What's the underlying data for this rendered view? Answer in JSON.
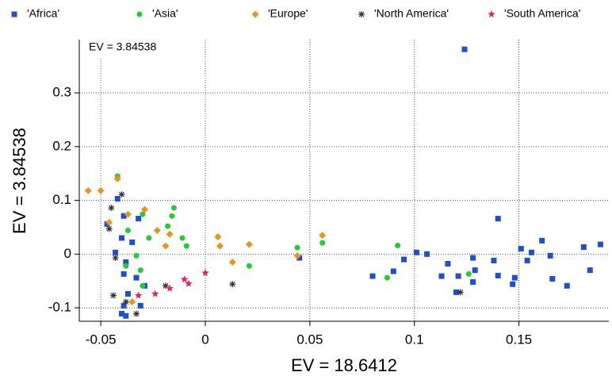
{
  "chart_data": {
    "type": "scatter",
    "annotation": "EV = 3.84538",
    "xlabel": "EV = 18.6412",
    "ylabel": "EV = 3.84538",
    "xlim": [
      -0.0603,
      0.193
    ],
    "ylim": [
      -0.125,
      0.399
    ],
    "xticks": [
      -0.05,
      0,
      0.05,
      0.1,
      0.15
    ],
    "yticks": [
      -0.1,
      0,
      0.1,
      0.2,
      0.3
    ],
    "grid": true,
    "legend": "top",
    "series": [
      {
        "name": "'Africa'",
        "color": "#1f4fd0",
        "marker": "square",
        "x": [
          0.124,
          0.189,
          0.181,
          0.184,
          0.173,
          0.166,
          0.165,
          0.161,
          0.156,
          0.154,
          0.151,
          0.148,
          0.147,
          0.14,
          0.138,
          0.14,
          0.129,
          0.128,
          0.128,
          0.121,
          0.116,
          0.113,
          0.106,
          0.101,
          0.095,
          0.09,
          0.08,
          0.045,
          0.12,
          -0.039,
          -0.047,
          -0.042,
          -0.04,
          -0.038,
          -0.039,
          -0.037,
          -0.039,
          -0.038,
          -0.031,
          -0.033,
          -0.029,
          -0.035,
          -0.043,
          -0.032,
          -0.04
        ],
        "y": [
          0.381,
          0.018,
          0.013,
          -0.03,
          -0.059,
          -0.046,
          -0.003,
          0.025,
          0.003,
          -0.012,
          0.01,
          -0.044,
          -0.056,
          -0.04,
          -0.012,
          0.066,
          -0.03,
          -0.007,
          -0.052,
          -0.041,
          -0.018,
          -0.041,
          0,
          0.003,
          -0.01,
          -0.032,
          -0.041,
          -0.007,
          -0.071,
          0.071,
          0.056,
          0.103,
          0.03,
          -0.015,
          -0.037,
          -0.074,
          -0.096,
          -0.115,
          -0.096,
          -0.044,
          -0.059,
          0.022,
          0.003,
          0.066,
          -0.111
        ]
      },
      {
        "name": "'Asia'",
        "color": "#22cc33",
        "marker": "circle",
        "x": [
          0.092,
          0.087,
          0.126,
          0.056,
          0.044,
          0.021,
          -0.015,
          -0.016,
          -0.011,
          -0.009,
          -0.018,
          -0.027,
          -0.03,
          -0.042,
          -0.037,
          -0.033,
          -0.038,
          -0.031,
          -0.03
        ],
        "y": [
          0.016,
          -0.044,
          -0.037,
          0.021,
          0.012,
          -0.022,
          0.086,
          0.071,
          0.03,
          0.015,
          0.052,
          0.03,
          0.074,
          0.145,
          0.044,
          -0.003,
          -0.022,
          -0.03,
          -0.059
        ]
      },
      {
        "name": "'Europe'",
        "color": "#e8951f",
        "marker": "diamond",
        "x": [
          -0.056,
          -0.05,
          -0.042,
          0.006,
          0.007,
          0.021,
          0.013,
          0.044,
          0.056,
          -0.019,
          -0.023,
          -0.029,
          -0.017,
          -0.037,
          -0.046,
          -0.035
        ],
        "y": [
          0.118,
          0.118,
          0.14,
          0.032,
          0.015,
          0.018,
          -0.015,
          -0.003,
          0.035,
          0.015,
          0.044,
          0.083,
          0.037,
          0.074,
          0.059,
          -0.089
        ]
      },
      {
        "name": "'North America'",
        "color": "#333333",
        "marker": "asterisk",
        "x": [
          0.013,
          0.122,
          -0.019,
          -0.043,
          -0.046,
          -0.04,
          -0.038,
          -0.033,
          -0.044,
          -0.045
        ],
        "y": [
          -0.056,
          -0.071,
          -0.059,
          -0.007,
          0.047,
          0.111,
          -0.089,
          -0.111,
          -0.077,
          0.086
        ]
      },
      {
        "name": "'South America'",
        "color": "#e0245e",
        "marker": "star",
        "x": [
          0,
          -0.008,
          -0.01,
          -0.017,
          -0.024,
          -0.032
        ],
        "y": [
          -0.035,
          -0.055,
          -0.047,
          -0.064,
          -0.074,
          -0.077
        ]
      }
    ]
  }
}
